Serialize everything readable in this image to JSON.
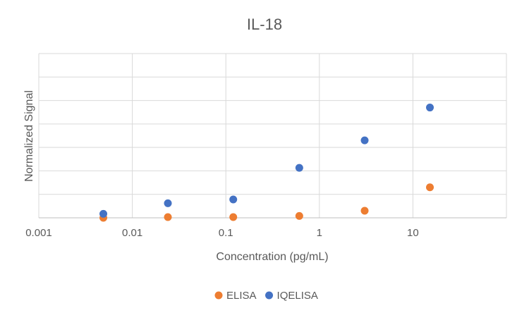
{
  "chart_data": {
    "type": "scatter",
    "title": "IL-18",
    "xlabel": "Concentration (pg/mL)",
    "ylabel": "Normalized Signal",
    "x_scale": "log",
    "xlim": [
      0.001,
      100
    ],
    "ylim": [
      0,
      7
    ],
    "x_ticks": [
      0.001,
      0.01,
      0.1,
      1,
      10
    ],
    "x_tick_labels": [
      "0.001",
      "0.01",
      "0.1",
      "1",
      "10"
    ],
    "y_gridlines": [
      0,
      1,
      2,
      3,
      4,
      5,
      6,
      7
    ],
    "y_tick_labels_visible": false,
    "grid": true,
    "legend_position": "bottom",
    "series": [
      {
        "name": "ELISA",
        "color": "#ed7d31",
        "points": [
          {
            "x": 0.0049,
            "y": 0.0
          },
          {
            "x": 0.024,
            "y": 0.03
          },
          {
            "x": 0.12,
            "y": 0.03
          },
          {
            "x": 0.61,
            "y": 0.08
          },
          {
            "x": 3.05,
            "y": 0.3
          },
          {
            "x": 15.2,
            "y": 1.3
          }
        ]
      },
      {
        "name": "IQELISA",
        "color": "#4472c4",
        "points": [
          {
            "x": 0.0049,
            "y": 0.17
          },
          {
            "x": 0.024,
            "y": 0.62
          },
          {
            "x": 0.12,
            "y": 0.78
          },
          {
            "x": 0.61,
            "y": 2.13
          },
          {
            "x": 3.05,
            "y": 3.3
          },
          {
            "x": 15.2,
            "y": 4.7
          }
        ]
      }
    ]
  }
}
